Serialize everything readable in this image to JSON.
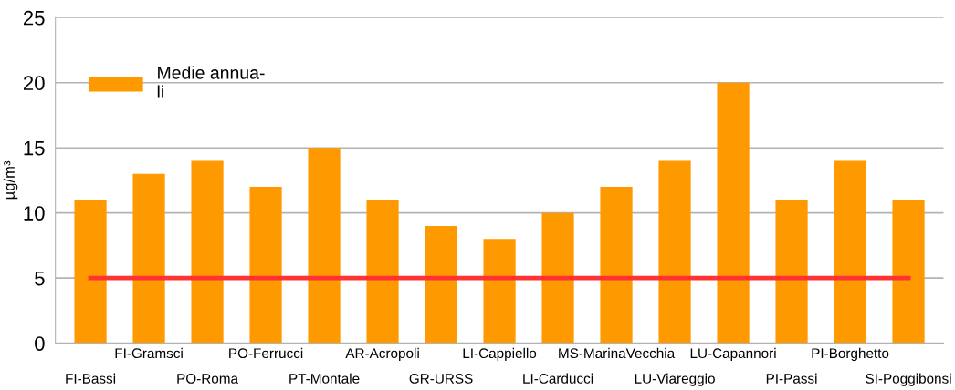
{
  "chart_data": {
    "type": "bar",
    "ylabel": "µg/m³",
    "categories": [
      "FI-Bassi",
      "FI-Gramsci",
      "PO-Roma",
      "PO-Ferrucci",
      "PT-Montale",
      "AR-Acropoli",
      "GR-URSS",
      "LI-Cappiello",
      "LI-Carducci",
      "MS-MarinaVecchia",
      "LU-Viareggio",
      "LU-Capannori",
      "PI-Passi",
      "PI-Borghetto",
      "SI-Poggibonsi"
    ],
    "series": [
      {
        "name": "Medie annua-\nli",
        "color": "#ff9900",
        "values": [
          11,
          13,
          14,
          12,
          15,
          11,
          9,
          8,
          10,
          12,
          14,
          20,
          11,
          14,
          11
        ]
      },
      {
        "type": "line",
        "color": "#ff3333",
        "values": [
          5,
          5,
          5,
          5,
          5,
          5,
          5,
          5,
          5,
          5,
          5,
          5,
          5,
          5,
          5
        ]
      }
    ],
    "ylim": [
      0,
      25
    ],
    "yticks": [
      0,
      5,
      10,
      15,
      20,
      25
    ],
    "grid": "y",
    "legend": "top left"
  }
}
